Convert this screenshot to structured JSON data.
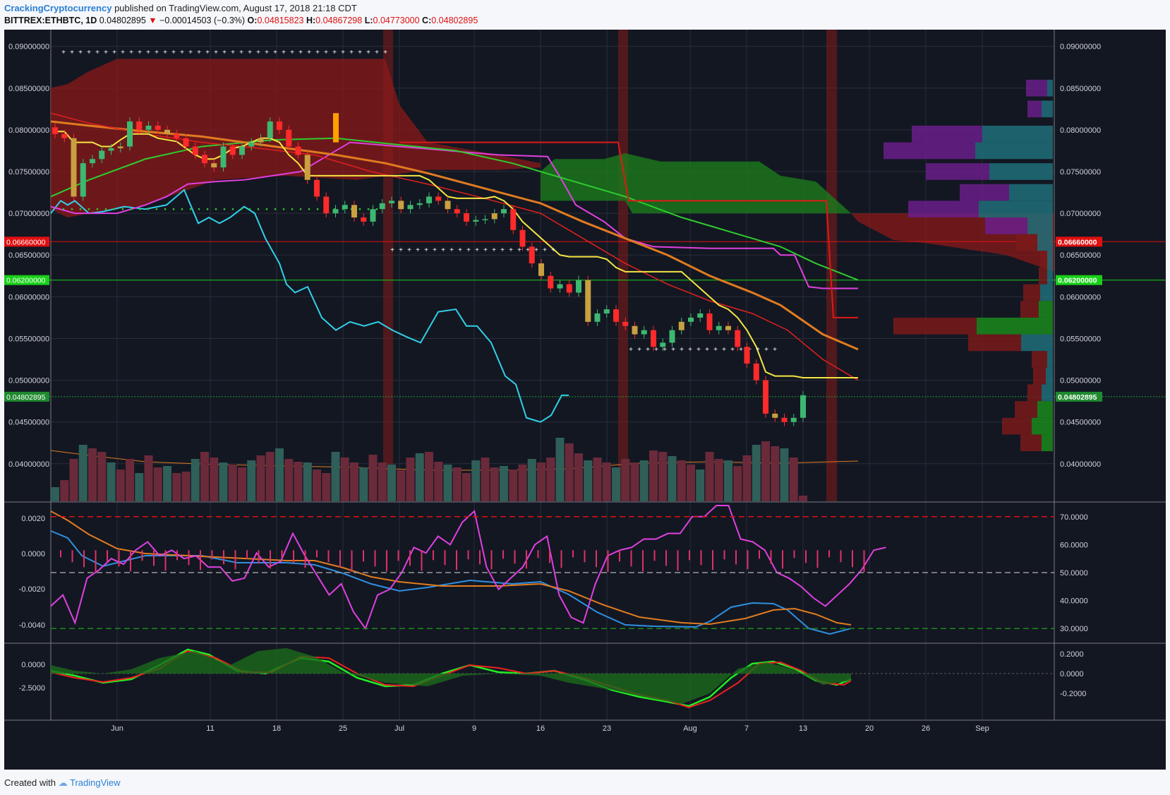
{
  "header": {
    "author": "CrackingCryptocurrency",
    "published": "published on TradingView.com, August 17, 2018 21:18 CDT",
    "symbol": "BITTREX:ETHBTC, 1D",
    "last": "0.04802895",
    "change_arrow": "▼",
    "change": "−0.00014503 (−0.3%)",
    "o_label": "O:",
    "o": "0.04815823",
    "h_label": "H:",
    "h": "0.04867298",
    "l_label": "L:",
    "l": "0.04773000",
    "c_label": "C:",
    "c": "0.04802895"
  },
  "footer": {
    "created_with": "Created with",
    "brand": "TradingView"
  },
  "colors": {
    "background": "#131722",
    "grid": "#2a2e39",
    "up": "#26a69a",
    "down": "#ef5350",
    "cloud_red": "#8b1a1a",
    "cloud_green": "#1b7a1b",
    "yellow": "#f5e642",
    "orange": "#e07b20",
    "magenta": "#e040e0",
    "cyan": "#31d0e8",
    "blue": "#2f8fe0"
  },
  "chart_data": [
    {
      "type": "line",
      "panel": "price",
      "x_ticks": [
        "Jun",
        "11",
        "18",
        "25",
        "Jul",
        "9",
        "16",
        "23",
        "Aug",
        "7",
        "13",
        "20",
        "26",
        "Sep"
      ],
      "y_ticks": [
        "0.09000000",
        "0.08500000",
        "0.08000000",
        "0.07500000",
        "0.07000000",
        "0.06500000",
        "0.06000000",
        "0.05500000",
        "0.05000000",
        "0.04500000",
        "0.04000000"
      ],
      "ylim": [
        0.0355,
        0.092
      ],
      "hlines": [
        {
          "label": "0.06660000",
          "value": 0.0666,
          "color": "#e01010"
        },
        {
          "label": "0.06200000",
          "value": 0.062,
          "color": "#18d018"
        },
        {
          "label": "0.04802895",
          "value": 0.04803,
          "color": "#1f9a2f"
        }
      ],
      "close": [
        0.0795,
        0.079,
        0.072,
        0.076,
        0.0765,
        0.0775,
        0.0778,
        0.078,
        0.081,
        0.08,
        0.0805,
        0.08,
        0.0795,
        0.079,
        0.078,
        0.077,
        0.076,
        0.0755,
        0.078,
        0.077,
        0.078,
        0.0785,
        0.079,
        0.081,
        0.08,
        0.078,
        0.077,
        0.074,
        0.072,
        0.07,
        0.0705,
        0.071,
        0.0695,
        0.069,
        0.0705,
        0.0712,
        0.0715,
        0.0705,
        0.071,
        0.0712,
        0.072,
        0.0715,
        0.0705,
        0.07,
        0.069,
        0.0692,
        0.0693,
        0.07,
        0.0705,
        0.068,
        0.066,
        0.064,
        0.0625,
        0.061,
        0.0615,
        0.0605,
        0.062,
        0.057,
        0.058,
        0.0585,
        0.057,
        0.0565,
        0.0555,
        0.056,
        0.054,
        0.0545,
        0.056,
        0.057,
        0.0575,
        0.058,
        0.056,
        0.0565,
        0.056,
        0.054,
        0.052,
        0.05,
        0.046,
        0.0455,
        0.045,
        0.0455,
        0.0482
      ],
      "conversion_line": [
        0.0798,
        0.0798,
        0.0785,
        0.0785,
        0.0785,
        0.078,
        0.078,
        0.0788,
        0.0795,
        0.0795,
        0.0795,
        0.079,
        0.0788,
        0.0786,
        0.0778,
        0.077,
        0.0765,
        0.0765,
        0.077,
        0.0778,
        0.078,
        0.0785,
        0.079,
        0.079,
        0.0785,
        0.077,
        0.076,
        0.0745,
        0.0745,
        0.0745,
        0.0745,
        0.0745,
        0.0745,
        0.0745,
        0.0745,
        0.0745,
        0.0745,
        0.0745,
        0.0745,
        0.0745,
        0.074,
        0.073,
        0.072,
        0.0718,
        0.0718,
        0.0718,
        0.0718,
        0.072,
        0.0715,
        0.0705,
        0.069,
        0.068,
        0.067,
        0.066,
        0.065,
        0.0648,
        0.0648,
        0.0648,
        0.0648,
        0.0645,
        0.0635,
        0.063,
        0.063,
        0.063,
        0.063,
        0.063,
        0.063,
        0.063,
        0.062,
        0.061,
        0.06,
        0.059,
        0.0585,
        0.0575,
        0.056,
        0.054,
        0.051,
        0.0505,
        0.0505,
        0.0505,
        0.0503
      ]
    },
    {
      "type": "line",
      "panel": "rsi",
      "y_ticks": [
        "70.0000",
        "60.0000",
        "50.0000",
        "40.0000",
        "30.0000"
      ],
      "left_ticks": [
        "0.0020",
        "0.0000",
        "-0.0020",
        "-0.0040"
      ],
      "ylim": [
        25,
        75
      ],
      "hlines": [
        70,
        50,
        30
      ],
      "rsi": [
        38,
        42,
        32,
        48,
        51,
        55,
        53,
        58,
        61,
        56,
        58,
        55,
        56,
        52,
        52,
        47,
        48,
        57,
        52,
        54,
        64,
        56,
        49,
        42,
        46,
        36,
        30,
        42,
        44,
        50,
        59,
        57,
        63,
        60,
        68,
        72,
        52,
        44,
        48,
        52,
        60,
        63,
        42,
        34,
        32,
        46,
        56,
        58,
        59,
        62,
        62,
        64,
        64,
        70,
        70,
        74,
        74,
        62,
        61,
        58,
        50,
        48,
        45,
        41,
        38,
        42,
        46,
        51,
        58,
        59
      ]
    },
    {
      "type": "area",
      "panel": "oscillator",
      "y_ticks": [
        "0.2000",
        "0.0000",
        "-0.2000"
      ],
      "left_ticks": [
        "0.0000",
        "-2.5000"
      ]
    }
  ],
  "price_axis": {
    "left": [
      "0.09000000",
      "0.08500000",
      "0.08000000",
      "0.07500000",
      "0.07000000",
      "0.06500000",
      "0.06000000",
      "0.05500000",
      "0.05000000",
      "0.04500000",
      "0.04000000"
    ],
    "tag_red": "0.06660000",
    "tag_green": "0.06200000",
    "tag_last": "0.04802895"
  }
}
